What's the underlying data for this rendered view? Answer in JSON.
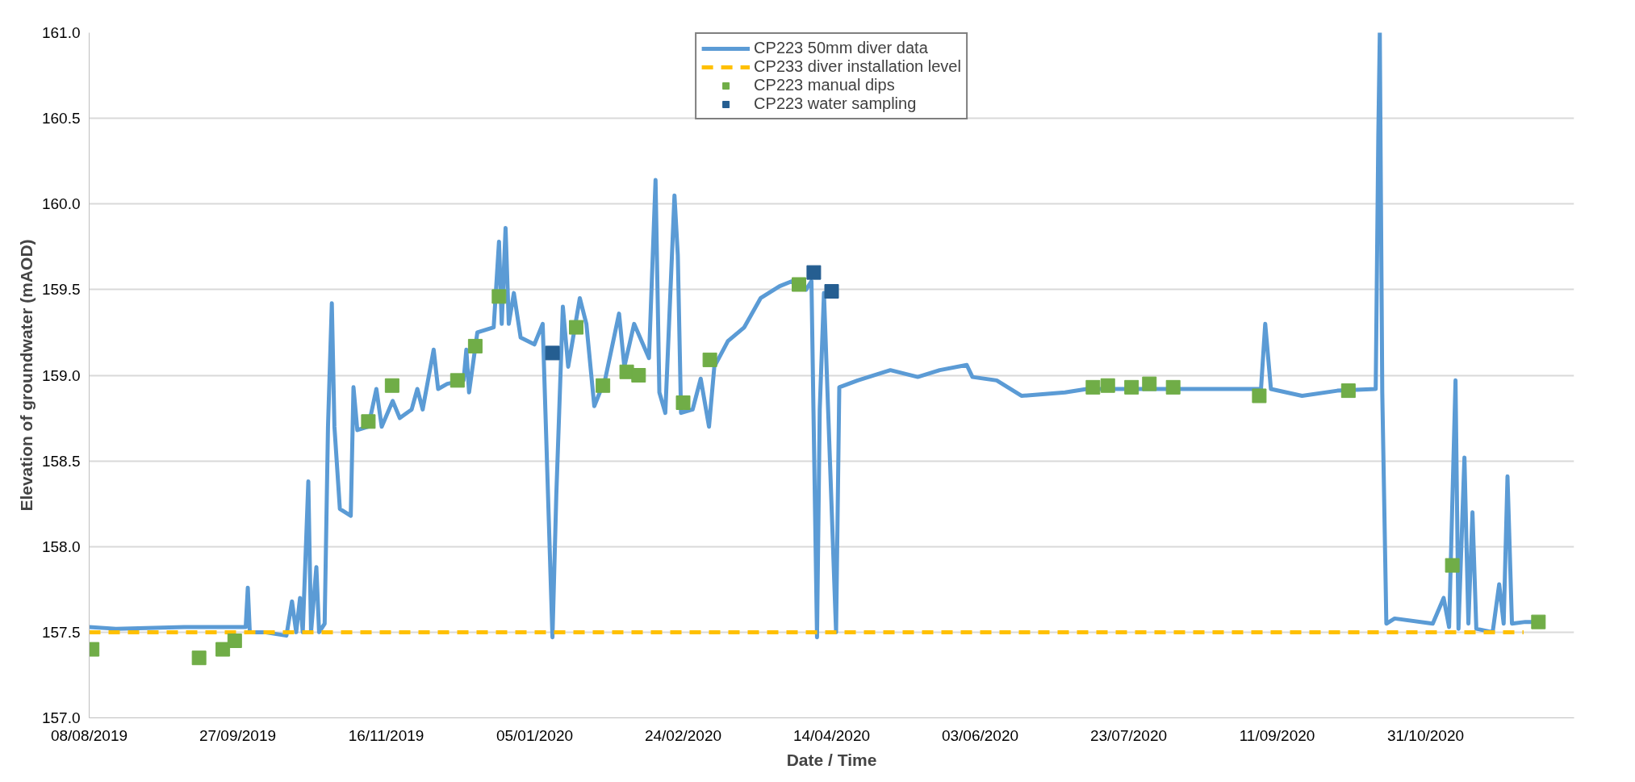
{
  "chart_data": {
    "type": "line",
    "xlabel": "Date / Time",
    "ylabel": "Elevation of groundwater (mAOD)",
    "xlim": [
      "2019-08-08",
      "2020-12-20"
    ],
    "ylim": [
      157.0,
      161.0
    ],
    "xticks": [
      {
        "value": "2019-08-08",
        "label": "08/08/2019"
      },
      {
        "value": "2019-09-27",
        "label": "27/09/2019"
      },
      {
        "value": "2019-11-16",
        "label": "16/11/2019"
      },
      {
        "value": "2020-01-05",
        "label": "05/01/2020"
      },
      {
        "value": "2020-02-24",
        "label": "24/02/2020"
      },
      {
        "value": "2020-04-14",
        "label": "14/04/2020"
      },
      {
        "value": "2020-06-03",
        "label": "03/06/2020"
      },
      {
        "value": "2020-07-23",
        "label": "23/07/2020"
      },
      {
        "value": "2020-09-11",
        "label": "11/09/2020"
      },
      {
        "value": "2020-10-31",
        "label": "31/10/2020"
      }
    ],
    "yticks": [
      {
        "value": 157.0,
        "label": "157.0"
      },
      {
        "value": 157.5,
        "label": "157.5"
      },
      {
        "value": 158.0,
        "label": "158.0"
      },
      {
        "value": 158.5,
        "label": "158.5"
      },
      {
        "value": 159.0,
        "label": "159.0"
      },
      {
        "value": 159.5,
        "label": "159.5"
      },
      {
        "value": 160.0,
        "label": "160.0"
      },
      {
        "value": 160.5,
        "label": "160.5"
      },
      {
        "value": 161.0,
        "label": "161.0"
      }
    ],
    "grid": "y",
    "legend": "top",
    "series": [
      {
        "name": "CP223 50mm diver data",
        "color": "#5b9bd5",
        "line_style": "solid",
        "x": [
          "2019-08-08",
          "2019-08-17",
          "2019-09-09",
          "2019-09-29T17:00",
          "2019-09-30T10:00",
          "2019-10-01T02:00",
          "2019-10-06T02:00",
          "2019-10-13T10:00",
          "2019-10-15T07:00",
          "2019-10-16T17:00",
          "2019-10-18T00:00",
          "2019-10-18T22:00",
          "2019-10-20T19:00",
          "2019-10-21T17:00",
          "2019-10-23T12:00",
          "2019-10-24T10:00",
          "2019-10-26T07:00",
          "2019-10-27T10:00",
          "2019-10-28T17:00",
          "2019-10-29T14:00",
          "2019-10-31T10:00",
          "2019-11-04T02:00",
          "2019-11-05",
          "2019-11-06T07:00",
          "2019-11-10",
          "2019-11-12T17:00",
          "2019-11-14T12:00",
          "2019-11-18T05:00",
          "2019-11-20T14:00",
          "2019-11-24T14:00",
          "2019-11-26T12:00",
          "2019-11-28T07:00",
          "2019-12-02",
          "2019-12-03T12:00",
          "2019-12-06T14:00",
          "2019-12-12T02:00",
          "2019-12-13",
          "2019-12-13T22:00",
          "2019-12-16T17:00",
          "2019-12-22T05:00",
          "2019-12-24",
          "2019-12-24T22:00",
          "2019-12-26T05:00",
          "2019-12-27T07:00",
          "2019-12-29",
          "2019-12-31T07:00",
          "2020-01-04T22:00",
          "2020-01-07T17:00",
          "2020-01-11",
          "2020-01-12T07:00",
          "2020-01-14T12:00",
          "2020-01-16T07:00",
          "2020-01-20T05:00",
          "2020-01-22T10:00",
          "2020-01-25T02:00",
          "2020-01-28T19:00",
          "2020-02-02T10:00",
          "2020-02-04T05:00",
          "2020-02-07T12:00",
          "2020-02-12T12:00",
          "2020-02-14T17:00",
          "2020-02-16",
          "2020-02-18",
          "2020-02-21T02:00",
          "2020-02-22T05:00",
          "2020-02-23T07:00",
          "2020-02-27T05:00",
          "2020-02-29T22:00",
          "2020-03-03T17:00",
          "2020-03-05T12:00",
          "2020-03-10T02:00",
          "2020-03-15T14:00",
          "2020-03-21T02:00",
          "2020-03-27T12:00",
          "2020-03-31T19:00",
          "2020-04-05T10:00",
          "2020-04-07T05:00",
          "2020-04-09T02:00",
          "2020-04-10",
          "2020-04-11T10:00",
          "2020-04-15T12:00",
          "2020-04-16T14:00",
          "2020-04-22T19:00",
          "2020-05-03T19:00",
          "2020-05-13",
          "2020-05-20T10:00",
          "2020-05-29T12:00",
          "2020-05-31T10:00",
          "2020-06-08T14:00",
          "2020-06-16T22:00",
          "2020-07-01T14:00",
          "2020-07-08T22:00",
          "2020-08-11",
          "2020-09-05T14:00",
          "2020-09-07",
          "2020-09-08T22:00",
          "2020-09-19T10:00",
          "2020-10-01T07:00",
          "2020-10-14T05:00",
          "2020-10-15T02:00",
          "2020-10-15T14:00",
          "2020-10-16T10:00",
          "2020-10-17T19:00",
          "2020-10-20T14:00",
          "2020-11-02T10:00",
          "2020-11-06T02:00",
          "2020-11-07T22:00",
          "2020-11-10T02:00",
          "2020-11-11T02:00",
          "2020-11-13T02:00",
          "2020-11-14T10:00",
          "2020-11-15T19:00",
          "2020-11-17T02:00",
          "2020-11-22T14:00",
          "2020-11-24T19:00",
          "2020-11-26T07:00",
          "2020-11-27T14:00",
          "2020-11-29T02:00",
          "2020-12-03T14:00",
          "2020-12-06T10:00"
        ],
        "values": [
          157.53,
          157.52,
          157.53,
          157.53,
          157.76,
          157.5,
          157.5,
          157.48,
          157.68,
          157.5,
          157.7,
          157.5,
          158.38,
          157.5,
          157.88,
          157.5,
          157.55,
          158.7,
          159.42,
          158.7,
          158.22,
          158.18,
          158.93,
          158.68,
          158.7,
          158.92,
          158.7,
          158.85,
          158.75,
          158.8,
          158.92,
          158.8,
          159.15,
          158.92,
          158.95,
          158.97,
          159.15,
          158.9,
          159.25,
          159.28,
          159.78,
          159.3,
          159.86,
          159.3,
          159.48,
          159.22,
          159.18,
          159.3,
          157.47,
          158.3,
          159.4,
          159.05,
          159.45,
          159.3,
          158.82,
          158.98,
          159.36,
          159.05,
          159.3,
          159.1,
          160.14,
          158.9,
          158.78,
          160.05,
          159.7,
          158.78,
          158.8,
          158.98,
          158.7,
          159.05,
          159.2,
          159.28,
          159.45,
          159.52,
          159.55,
          159.5,
          159.55,
          157.47,
          158.8,
          159.48,
          157.5,
          158.93,
          158.97,
          159.03,
          158.99,
          159.03,
          159.06,
          158.99,
          158.97,
          158.88,
          158.9,
          158.92,
          158.92,
          158.92,
          159.3,
          158.92,
          158.88,
          158.91,
          158.92,
          160.4,
          161.0,
          158.9,
          157.55,
          157.58,
          157.55,
          157.7,
          157.53,
          158.97,
          157.52,
          158.52,
          157.55,
          158.2,
          157.52,
          157.5,
          157.78,
          157.55,
          158.41,
          157.55,
          157.56,
          157.56
        ]
      },
      {
        "name": "CP233 diver installation level",
        "type": "line",
        "color": "#ffc000",
        "line_style": "dashed",
        "x": [
          "2019-08-08",
          "2020-12-03"
        ],
        "values": [
          157.5,
          157.5
        ]
      },
      {
        "name": "CP223 manual dips",
        "type": "scatter",
        "marker": "square",
        "color": "#70ad47",
        "x": [
          "2019-08-09",
          "2019-09-14",
          "2019-09-22",
          "2019-09-26",
          "2019-11-10",
          "2019-11-18",
          "2019-12-10",
          "2019-12-16",
          "2019-12-24",
          "2020-01-19",
          "2020-01-28",
          "2020-02-05",
          "2020-02-09",
          "2020-02-24",
          "2020-03-04",
          "2020-04-03",
          "2020-07-11",
          "2020-07-16",
          "2020-07-24",
          "2020-07-30",
          "2020-08-07",
          "2020-09-05",
          "2020-10-05",
          "2020-11-09",
          "2020-12-08"
        ],
        "values": [
          157.4,
          157.35,
          157.4,
          157.45,
          158.73,
          158.94,
          158.97,
          159.17,
          159.46,
          159.28,
          158.94,
          159.02,
          159.0,
          158.84,
          159.09,
          159.53,
          158.93,
          158.94,
          158.93,
          158.95,
          158.93,
          158.88,
          158.91,
          157.89,
          157.56
        ]
      },
      {
        "name": "CP223 water sampling",
        "type": "scatter",
        "marker": "square",
        "color": "#255e91",
        "x": [
          "2020-01-11",
          "2020-04-08",
          "2020-04-14"
        ],
        "values": [
          159.13,
          159.6,
          159.49
        ]
      }
    ]
  }
}
